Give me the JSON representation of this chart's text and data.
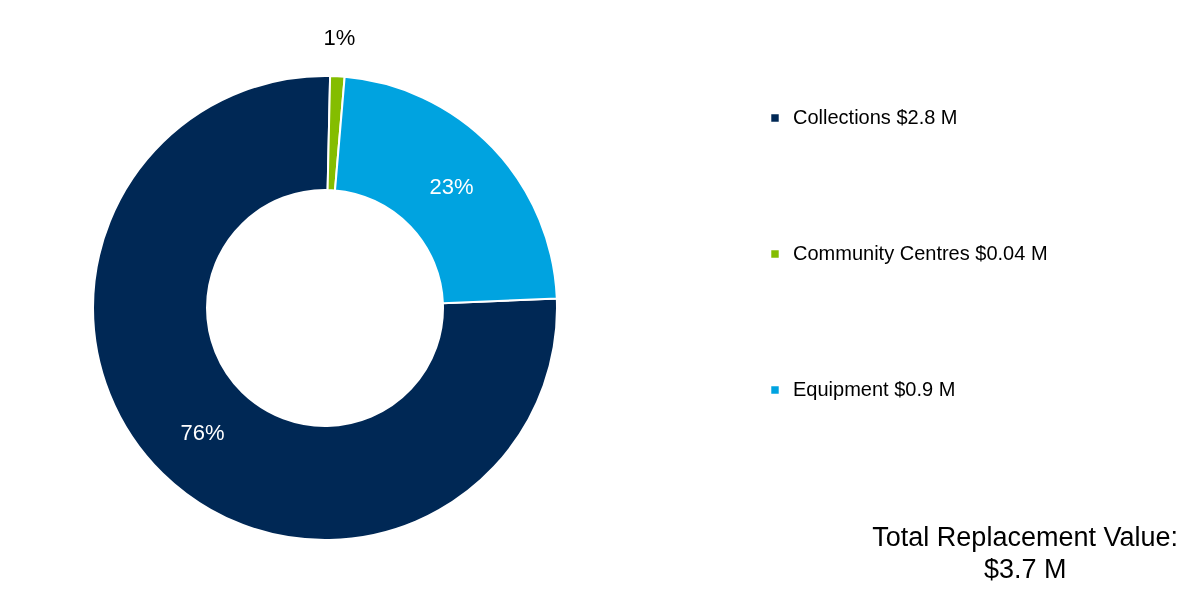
{
  "chart_data": {
    "type": "donut",
    "categories": [
      "Collections $2.8 M",
      "Community Centres $0.04 M",
      "Equipment $0.9 M"
    ],
    "values": [
      76,
      1,
      23
    ],
    "value_labels": [
      "76%",
      "1%",
      "23%"
    ],
    "colors": [
      "#002855",
      "#84bd00",
      "#00a3e0"
    ],
    "legend": "right",
    "annotations": [
      "Total Replacement Value:\n$3.7 M"
    ]
  }
}
